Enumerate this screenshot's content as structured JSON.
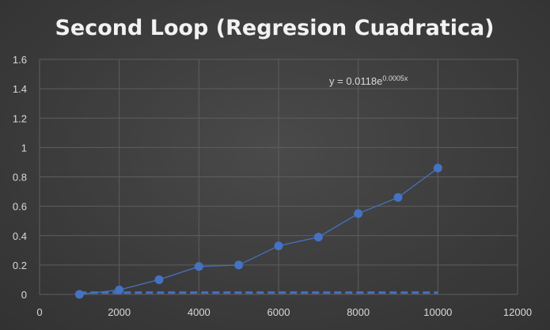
{
  "chart_data": {
    "type": "scatter",
    "title": "Second Loop (Regresion Cuadratica)",
    "xlabel": "",
    "ylabel": "",
    "xlim": [
      0,
      12000
    ],
    "ylim": [
      0,
      1.6
    ],
    "x_ticks": [
      0,
      2000,
      4000,
      6000,
      8000,
      10000,
      12000
    ],
    "y_ticks": [
      0,
      0.2,
      0.4,
      0.6,
      0.8,
      1,
      1.2,
      1.4,
      1.6
    ],
    "grid": true,
    "legend": "none",
    "series": [
      {
        "x": [
          1000,
          2000,
          3000,
          4000,
          5000,
          6000,
          7000,
          8000,
          9000,
          10000
        ],
        "y": [
          0.0,
          0.03,
          0.1,
          0.19,
          0.2,
          0.33,
          0.39,
          0.55,
          0.66,
          0.86
        ],
        "color": "#4472c4",
        "marker": "circle",
        "line": "solid"
      }
    ],
    "trendline": {
      "type": "exponential",
      "a": 0.0118,
      "b": 0.0005,
      "x_range": [
        1000,
        10000
      ],
      "color": "#4472c4",
      "style": "dashed",
      "equation_prefix": "y = 0.0118e",
      "equation_exponent": "0.0005x"
    },
    "colors": {
      "grid": "#5e5e5e",
      "text": "#d9d9d9",
      "title": "#f2f2f2"
    }
  }
}
